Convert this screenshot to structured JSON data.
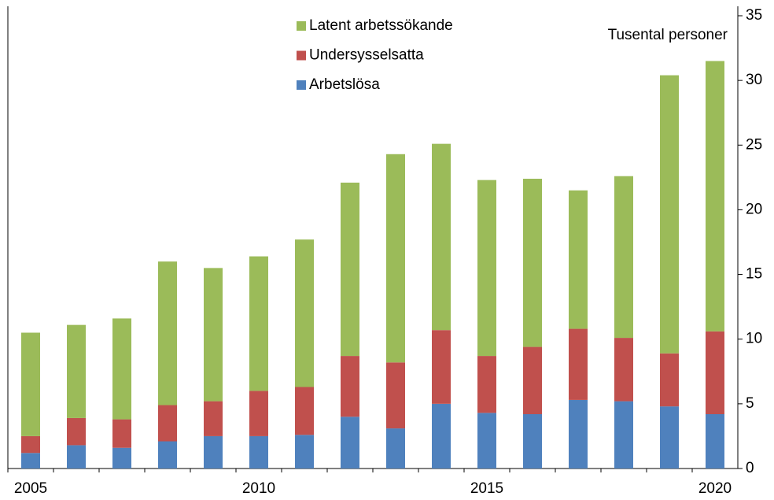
{
  "chart_data": {
    "type": "stacked_bar",
    "annotation": "Tusental personer",
    "categories": [
      "2005",
      null,
      null,
      null,
      null,
      "2010",
      null,
      null,
      null,
      null,
      "2015",
      null,
      null,
      null,
      null,
      "2020"
    ],
    "series": [
      {
        "name": "Arbetslösa",
        "color": "#4f81bd",
        "values": [
          1.2,
          1.8,
          1.6,
          2.1,
          2.5,
          2.5,
          2.6,
          4.0,
          3.1,
          5.0,
          4.3,
          4.2,
          5.3,
          5.2,
          4.8,
          4.2
        ]
      },
      {
        "name": "Undersysselsatta",
        "color": "#c0504d",
        "values": [
          1.3,
          2.1,
          2.2,
          2.8,
          2.7,
          3.5,
          3.7,
          4.7,
          5.1,
          5.7,
          4.4,
          5.2,
          5.5,
          4.9,
          4.1,
          6.4
        ]
      },
      {
        "name": "Latent arbetssökande",
        "color": "#9bbb59",
        "values": [
          8.0,
          7.2,
          7.8,
          11.1,
          10.3,
          10.4,
          11.4,
          13.4,
          16.1,
          14.4,
          13.6,
          13.0,
          10.7,
          12.5,
          21.5,
          20.9
        ]
      }
    ],
    "ylim": [
      0,
      35
    ],
    "yticks": [
      0,
      5,
      10,
      15,
      20,
      25,
      30,
      35
    ],
    "legend": "top-center"
  }
}
